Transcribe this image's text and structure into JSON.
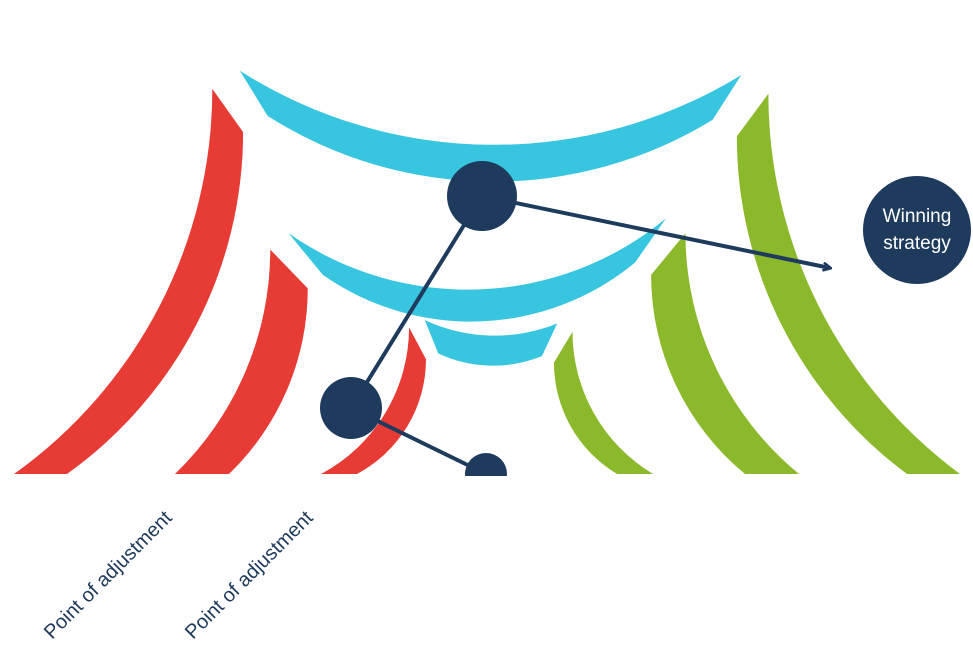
{
  "colors": {
    "red": "#e63c35",
    "cyan": "#37c5df",
    "green": "#8cb92b",
    "navy": "#1e3a5c",
    "background": "#ffffff"
  },
  "labels": {
    "adjustment_outer": "Point of adjustment",
    "adjustment_inner": "Point of adjustment",
    "winning_line1": "Winning",
    "winning_line2": "strategy"
  }
}
